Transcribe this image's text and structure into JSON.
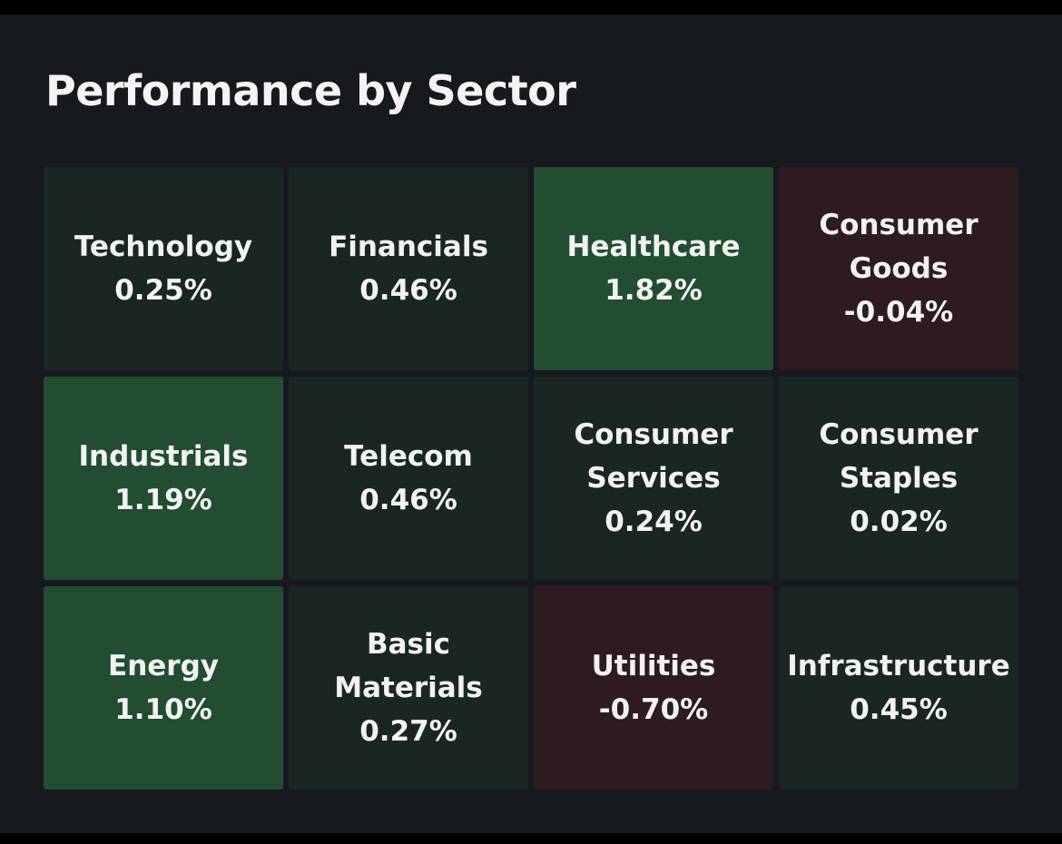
{
  "header": {
    "title": "Performance by Sector"
  },
  "colors": {
    "background": "#161a1f",
    "neutral_tile": "#1a2624",
    "positive_tile": "#234d31",
    "negative_tile": "#2e1b20",
    "text": "#f1f3f1"
  },
  "sectors": [
    {
      "name": "Technology",
      "change": "0.25%",
      "tone": "neutral"
    },
    {
      "name": "Financials",
      "change": "0.46%",
      "tone": "neutral"
    },
    {
      "name": "Healthcare",
      "change": "1.82%",
      "tone": "up"
    },
    {
      "name": "Consumer\nGoods",
      "change": "-0.04%",
      "tone": "down"
    },
    {
      "name": "Industrials",
      "change": "1.19%",
      "tone": "up"
    },
    {
      "name": "Telecom",
      "change": "0.46%",
      "tone": "neutral"
    },
    {
      "name": "Consumer\nServices",
      "change": "0.24%",
      "tone": "neutral"
    },
    {
      "name": "Consumer\nStaples",
      "change": "0.02%",
      "tone": "neutral"
    },
    {
      "name": "Energy",
      "change": "1.10%",
      "tone": "up"
    },
    {
      "name": "Basic\nMaterials",
      "change": "0.27%",
      "tone": "neutral"
    },
    {
      "name": "Utilities",
      "change": "-0.70%",
      "tone": "down"
    },
    {
      "name": "Infrastructure",
      "change": "0.45%",
      "tone": "neutral"
    }
  ]
}
